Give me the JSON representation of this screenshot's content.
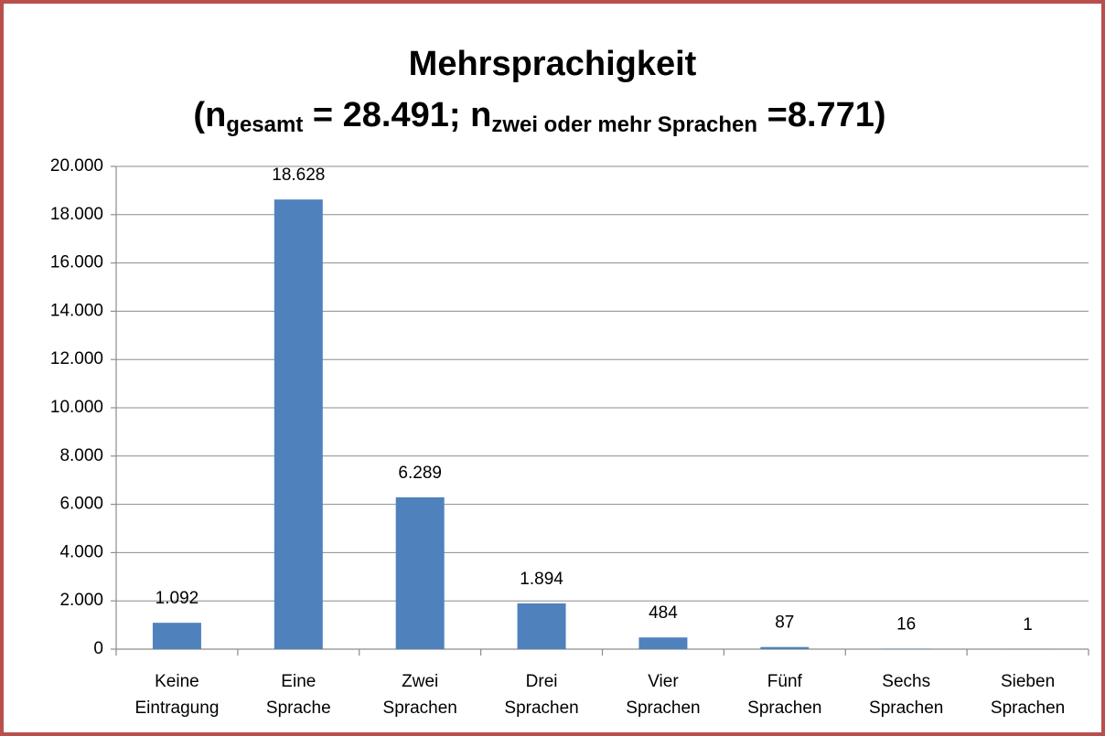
{
  "chart_data": {
    "type": "bar",
    "title": "Mehrsprachigkeit",
    "subtitle_parts": [
      {
        "text": "(n"
      },
      {
        "text": "gesamt",
        "sub": true
      },
      {
        "text": " = 28.491; n"
      },
      {
        "text": "zwei oder mehr Sprachen",
        "sub": true
      },
      {
        "text": " =8.771)"
      }
    ],
    "categories": [
      "Keine Eintragung",
      "Eine Sprache",
      "Zwei Sprachen",
      "Drei Sprachen",
      "Vier Sprachen",
      "Fünf Sprachen",
      "Sechs Sprachen",
      "Sieben Sprachen"
    ],
    "values": [
      1092,
      18628,
      6289,
      1894,
      484,
      87,
      16,
      1
    ],
    "value_labels": [
      "1.092",
      "18.628",
      "6.289",
      "1.894",
      "484",
      "87",
      "16",
      "1"
    ],
    "color": "#4f81bd",
    "ylim": [
      0,
      20000
    ],
    "yticks": [
      0,
      {
        "value": 2000,
        "label": "2.000"
      },
      {
        "value": 4000,
        "label": "4.000"
      },
      {
        "value": 6000,
        "label": "6.000"
      },
      {
        "value": 8000,
        "label": "8.000"
      },
      {
        "value": 10000,
        "label": "10.000"
      },
      {
        "value": 12000,
        "label": "12.000"
      },
      {
        "value": 14000,
        "label": "14.000"
      },
      {
        "value": 16000,
        "label": "16.000"
      },
      {
        "value": 18000,
        "label": "18.000"
      },
      {
        "value": 20000,
        "label": "20.000"
      }
    ],
    "grid": true
  }
}
